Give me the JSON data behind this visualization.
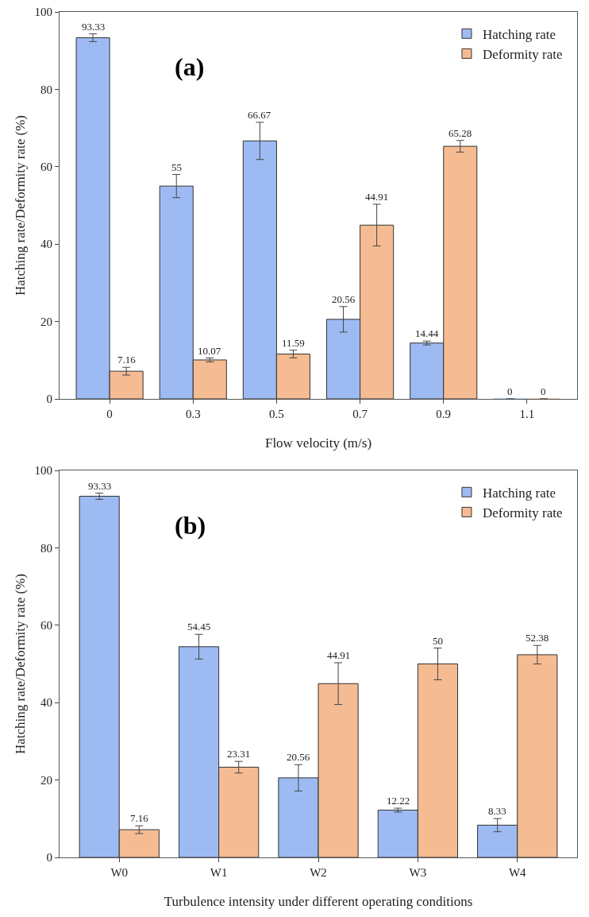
{
  "chart_data": [
    {
      "type": "bar",
      "annotations": [
        "(a)"
      ],
      "xlabel": "Flow velocity (m/s)",
      "ylabel": "Hatching rate/Deformity rate (%)",
      "categories": [
        "0",
        "0.3",
        "0.5",
        "0.7",
        "0.9",
        "1.1"
      ],
      "ylim": [
        0,
        100
      ],
      "yticks": [
        0,
        20,
        40,
        60,
        80,
        100
      ],
      "grid": false,
      "legend": "top right",
      "data_labels": true,
      "series": [
        {
          "name": "Hatching rate",
          "color": "#9dbbf2",
          "values": [
            93.33,
            55,
            66.67,
            20.56,
            14.44,
            0
          ],
          "errors": [
            1,
            3,
            4.8,
            3.3,
            0.5,
            null
          ]
        },
        {
          "name": "Deformity rate",
          "color": "#f5bb92",
          "values": [
            7.16,
            10.07,
            11.59,
            44.91,
            65.28,
            0
          ],
          "errors": [
            1,
            0.5,
            1,
            5.4,
            1.5,
            null
          ]
        }
      ]
    },
    {
      "type": "bar",
      "annotations": [
        "(b)"
      ],
      "xlabel": "Turbulence intensity under different operating conditions",
      "ylabel": "Hatching rate/Deformity rate (%)",
      "categories": [
        "W0",
        "W1",
        "W2",
        "W3",
        "W4"
      ],
      "ylim": [
        0,
        100
      ],
      "yticks": [
        0,
        20,
        40,
        60,
        80,
        100
      ],
      "grid": false,
      "legend": "top right",
      "data_labels": true,
      "series": [
        {
          "name": "Hatching rate",
          "color": "#9dbbf2",
          "values": [
            93.33,
            54.45,
            20.56,
            12.22,
            8.33
          ],
          "errors": [
            0.8,
            3.2,
            3.4,
            0.5,
            1.7
          ]
        },
        {
          "name": "Deformity rate",
          "color": "#f5bb92",
          "values": [
            7.16,
            23.31,
            44.91,
            50,
            52.38
          ],
          "errors": [
            1,
            1.5,
            5.4,
            4.1,
            2.4
          ]
        }
      ]
    }
  ]
}
